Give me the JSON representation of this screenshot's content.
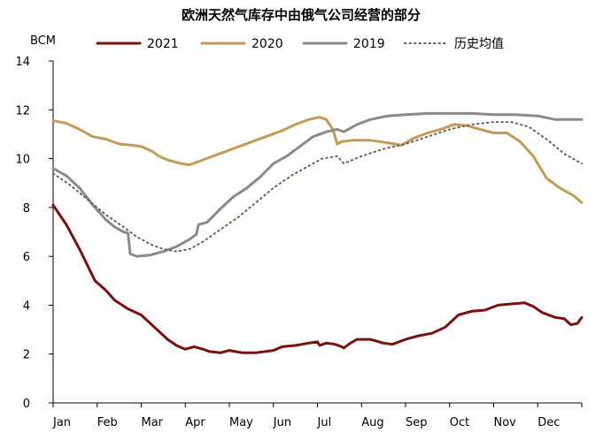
{
  "chart_data": {
    "type": "line",
    "title": "欧洲天然气库存中由俄气公司经营的部分",
    "ylabel": "BCM",
    "xlabel": "",
    "ylim": [
      0,
      14
    ],
    "yticks": [
      0,
      2,
      4,
      6,
      8,
      10,
      12,
      14
    ],
    "grid": false,
    "legend_position": "top",
    "months": [
      "Jan",
      "Feb",
      "Mar",
      "Apr",
      "May",
      "Jun",
      "Jul",
      "Aug",
      "Sep",
      "Oct",
      "Nov",
      "Dec"
    ],
    "series": [
      {
        "name": "2021",
        "color": "#7a1010",
        "style": "solid",
        "points": [
          [
            0,
            8.1
          ],
          [
            0.3,
            7.3
          ],
          [
            0.6,
            6.3
          ],
          [
            0.95,
            5.0
          ],
          [
            1.2,
            4.6
          ],
          [
            1.4,
            4.2
          ],
          [
            1.7,
            3.85
          ],
          [
            2.0,
            3.6
          ],
          [
            2.3,
            3.1
          ],
          [
            2.6,
            2.6
          ],
          [
            2.8,
            2.35
          ],
          [
            3.0,
            2.2
          ],
          [
            3.2,
            2.3
          ],
          [
            3.4,
            2.2
          ],
          [
            3.55,
            2.1
          ],
          [
            3.8,
            2.05
          ],
          [
            4.0,
            2.15
          ],
          [
            4.3,
            2.05
          ],
          [
            4.6,
            2.05
          ],
          [
            5.0,
            2.15
          ],
          [
            5.2,
            2.3
          ],
          [
            5.5,
            2.35
          ],
          [
            5.8,
            2.45
          ],
          [
            6.0,
            2.5
          ],
          [
            6.05,
            2.35
          ],
          [
            6.2,
            2.45
          ],
          [
            6.4,
            2.4
          ],
          [
            6.55,
            2.3
          ],
          [
            6.6,
            2.25
          ],
          [
            6.75,
            2.45
          ],
          [
            6.9,
            2.6
          ],
          [
            7.2,
            2.6
          ],
          [
            7.5,
            2.45
          ],
          [
            7.7,
            2.4
          ],
          [
            8.0,
            2.6
          ],
          [
            8.3,
            2.75
          ],
          [
            8.6,
            2.85
          ],
          [
            8.9,
            3.1
          ],
          [
            9.2,
            3.6
          ],
          [
            9.5,
            3.75
          ],
          [
            9.8,
            3.8
          ],
          [
            10.1,
            4.0
          ],
          [
            10.4,
            4.05
          ],
          [
            10.7,
            4.1
          ],
          [
            10.9,
            3.95
          ],
          [
            11.1,
            3.7
          ],
          [
            11.4,
            3.5
          ],
          [
            11.6,
            3.45
          ],
          [
            11.75,
            3.2
          ],
          [
            11.9,
            3.25
          ],
          [
            12.0,
            3.5
          ]
        ]
      },
      {
        "name": "2020",
        "color": "#c49a58",
        "style": "solid",
        "points": [
          [
            0,
            11.55
          ],
          [
            0.3,
            11.45
          ],
          [
            0.6,
            11.2
          ],
          [
            0.9,
            10.9
          ],
          [
            1.2,
            10.8
          ],
          [
            1.5,
            10.6
          ],
          [
            1.8,
            10.55
          ],
          [
            2.0,
            10.5
          ],
          [
            2.25,
            10.3
          ],
          [
            2.4,
            10.1
          ],
          [
            2.6,
            9.95
          ],
          [
            2.9,
            9.8
          ],
          [
            3.1,
            9.75
          ],
          [
            3.4,
            9.95
          ],
          [
            3.7,
            10.15
          ],
          [
            4.0,
            10.35
          ],
          [
            4.3,
            10.55
          ],
          [
            4.6,
            10.75
          ],
          [
            4.9,
            10.95
          ],
          [
            5.2,
            11.15
          ],
          [
            5.5,
            11.4
          ],
          [
            5.8,
            11.6
          ],
          [
            6.05,
            11.7
          ],
          [
            6.2,
            11.6
          ],
          [
            6.35,
            11.2
          ],
          [
            6.45,
            10.6
          ],
          [
            6.55,
            10.7
          ],
          [
            6.8,
            10.75
          ],
          [
            7.2,
            10.75
          ],
          [
            7.6,
            10.65
          ],
          [
            7.9,
            10.55
          ],
          [
            8.2,
            10.85
          ],
          [
            8.5,
            11.05
          ],
          [
            8.8,
            11.2
          ],
          [
            9.1,
            11.4
          ],
          [
            9.4,
            11.35
          ],
          [
            9.7,
            11.2
          ],
          [
            10.0,
            11.05
          ],
          [
            10.3,
            11.05
          ],
          [
            10.6,
            10.7
          ],
          [
            10.9,
            10.1
          ],
          [
            11.2,
            9.2
          ],
          [
            11.5,
            8.8
          ],
          [
            11.8,
            8.5
          ],
          [
            12.0,
            8.2
          ]
        ]
      },
      {
        "name": "2019",
        "color": "#8a8a8a",
        "style": "solid",
        "points": [
          [
            0,
            9.6
          ],
          [
            0.3,
            9.3
          ],
          [
            0.6,
            8.8
          ],
          [
            0.9,
            8.1
          ],
          [
            1.2,
            7.5
          ],
          [
            1.4,
            7.2
          ],
          [
            1.6,
            7.0
          ],
          [
            1.7,
            6.95
          ],
          [
            1.75,
            6.1
          ],
          [
            1.9,
            6.0
          ],
          [
            2.2,
            6.05
          ],
          [
            2.5,
            6.2
          ],
          [
            2.8,
            6.4
          ],
          [
            3.1,
            6.7
          ],
          [
            3.25,
            6.9
          ],
          [
            3.3,
            7.3
          ],
          [
            3.5,
            7.4
          ],
          [
            3.8,
            7.95
          ],
          [
            4.1,
            8.45
          ],
          [
            4.4,
            8.8
          ],
          [
            4.7,
            9.25
          ],
          [
            5.0,
            9.8
          ],
          [
            5.3,
            10.1
          ],
          [
            5.6,
            10.5
          ],
          [
            5.9,
            10.9
          ],
          [
            6.2,
            11.1
          ],
          [
            6.45,
            11.2
          ],
          [
            6.6,
            11.1
          ],
          [
            6.9,
            11.4
          ],
          [
            7.2,
            11.6
          ],
          [
            7.6,
            11.75
          ],
          [
            8.0,
            11.8
          ],
          [
            8.5,
            11.85
          ],
          [
            9.0,
            11.85
          ],
          [
            9.5,
            11.85
          ],
          [
            10.0,
            11.8
          ],
          [
            10.5,
            11.8
          ],
          [
            11.0,
            11.75
          ],
          [
            11.4,
            11.6
          ],
          [
            11.7,
            11.6
          ],
          [
            12.0,
            11.6
          ]
        ]
      },
      {
        "name": "历史均值",
        "color": "#6e5f50",
        "style": "dotted",
        "points": [
          [
            0,
            9.4
          ],
          [
            0.4,
            8.9
          ],
          [
            0.8,
            8.3
          ],
          [
            1.2,
            7.7
          ],
          [
            1.6,
            7.2
          ],
          [
            1.9,
            6.8
          ],
          [
            2.2,
            6.5
          ],
          [
            2.5,
            6.3
          ],
          [
            2.8,
            6.2
          ],
          [
            3.1,
            6.3
          ],
          [
            3.4,
            6.6
          ],
          [
            3.8,
            7.1
          ],
          [
            4.2,
            7.6
          ],
          [
            4.6,
            8.2
          ],
          [
            5.0,
            8.8
          ],
          [
            5.4,
            9.3
          ],
          [
            5.8,
            9.7
          ],
          [
            6.1,
            10.0
          ],
          [
            6.45,
            10.1
          ],
          [
            6.6,
            9.8
          ],
          [
            7.0,
            10.1
          ],
          [
            7.5,
            10.4
          ],
          [
            8.0,
            10.6
          ],
          [
            8.5,
            10.9
          ],
          [
            9.0,
            11.2
          ],
          [
            9.5,
            11.4
          ],
          [
            10.0,
            11.5
          ],
          [
            10.4,
            11.5
          ],
          [
            10.8,
            11.3
          ],
          [
            11.2,
            10.8
          ],
          [
            11.6,
            10.2
          ],
          [
            12.0,
            9.8
          ]
        ]
      }
    ]
  }
}
